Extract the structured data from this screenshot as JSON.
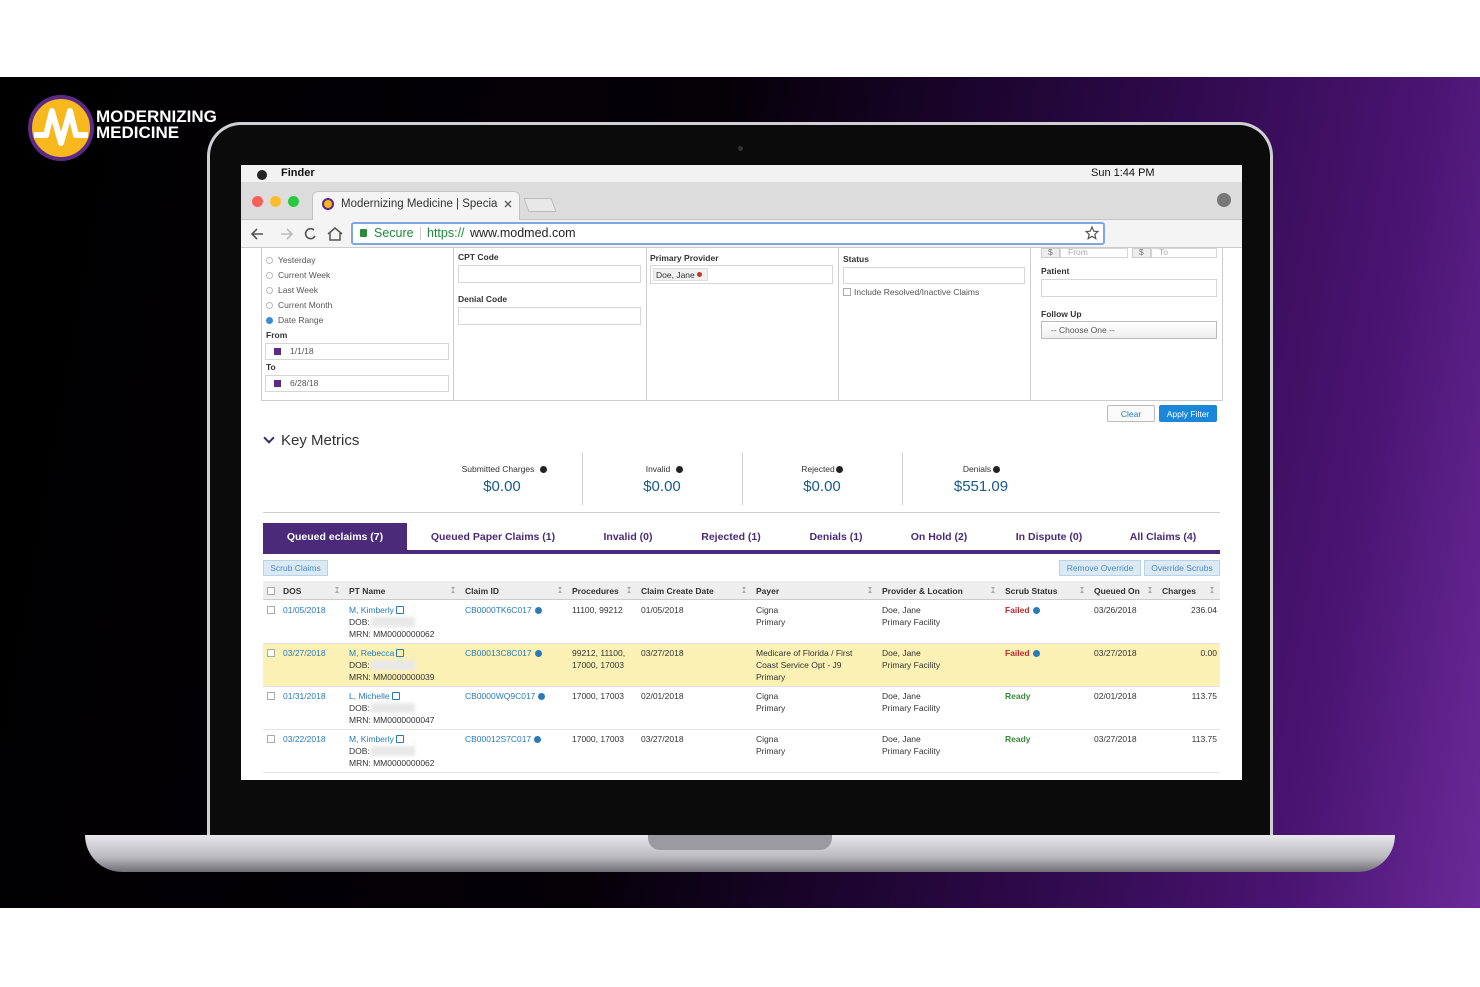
{
  "logo": {
    "line1": "MODERNIZING",
    "line2": "MEDICINE"
  },
  "menubar": {
    "app": "Finder",
    "clock": "Sun 1:44 PM"
  },
  "browser": {
    "tab_title": "Modernizing Medicine | Specia",
    "secure": "Secure",
    "url_scheme": "https://",
    "url_host": "www.modmed.com"
  },
  "filters": {
    "date_options": [
      "Yesterday",
      "Current Week",
      "Last Week",
      "Current Month",
      "Date Range"
    ],
    "from_label": "From",
    "from_value": "1/1/18",
    "to_label": "To",
    "to_value": "6/28/18",
    "cpt_code_label": "CPT Code",
    "denial_code_label": "Denial Code",
    "primary_provider_label": "Primary Provider",
    "provider_chip": "Doe, Jane",
    "status_label": "Status",
    "include_resolved": "Include Resolved/Inactive Claims",
    "currency": "$",
    "amount_from": "From",
    "amount_to": "To",
    "patient_label": "Patient",
    "follow_up_label": "Follow Up",
    "follow_up_value": "-- Choose One --",
    "clear": "Clear",
    "apply": "Apply Filter"
  },
  "key_metrics": {
    "title": "Key Metrics",
    "items": [
      {
        "label": "Submitted Charges",
        "value": "$0.00"
      },
      {
        "label": "Invalid",
        "value": "$0.00"
      },
      {
        "label": "Rejected",
        "value": "$0.00"
      },
      {
        "label": "Denials",
        "value": "$551.09"
      }
    ]
  },
  "tabs": [
    "Queued eclaims (7)",
    "Queued Paper Claims (1)",
    "Invalid (0)",
    "Rejected (1)",
    "Denials (1)",
    "On Hold (2)",
    "In Dispute (0)",
    "All Claims (4)"
  ],
  "buttons": {
    "scrub": "Scrub Claims",
    "remove_override": "Remove Override",
    "override_scrubs": "Override Scrubs"
  },
  "table": {
    "columns": [
      "DOS",
      "PT Name",
      "Claim ID",
      "Procedures",
      "Claim Create Date",
      "Payer",
      "Provider & Location",
      "Scrub Status",
      "Queued On",
      "Charges"
    ],
    "rows": [
      {
        "dos": "01/05/2018",
        "pt_name": "M, Kimberly",
        "dob": "DOB:",
        "mrn": "MRN: MM0000000062",
        "claim_id": "CB0000TK6C017",
        "procedures": "11100, 99212",
        "claim_create_date": "01/05/2018",
        "payer": "Cigna",
        "payer_rank": "Primary",
        "provider": "Doe, Jane",
        "location": "Primary Facility",
        "scrub_status": "Failed",
        "queued_on": "03/26/2018",
        "charges": "236.04"
      },
      {
        "dos": "03/27/2018",
        "pt_name": "M, Rebecca",
        "dob": "DOB:",
        "mrn": "MRN: MM0000000039",
        "claim_id": "CB00013C8C017",
        "procedures": "99212, 11100, 17000, 17003",
        "claim_create_date": "03/27/2018",
        "payer": "Medicare of Florida / First Coast Service Opt - J9",
        "payer_rank": "Primary",
        "provider": "Doe, Jane",
        "location": "Primary Facility",
        "scrub_status": "Failed",
        "queued_on": "03/27/2018",
        "charges": "0.00"
      },
      {
        "dos": "01/31/2018",
        "pt_name": "L, Michelle",
        "dob": "DOB:",
        "mrn": "MRN: MM0000000047",
        "claim_id": "CB0000WQ9C017",
        "procedures": "17000, 17003",
        "claim_create_date": "02/01/2018",
        "payer": "Cigna",
        "payer_rank": "Primary",
        "provider": "Doe, Jane",
        "location": "Primary Facility",
        "scrub_status": "Ready",
        "queued_on": "02/01/2018",
        "charges": "113.75"
      },
      {
        "dos": "03/22/2018",
        "pt_name": "M, Kimberly",
        "dob": "DOB:",
        "mrn": "MRN: MM0000000062",
        "claim_id": "CB00012S7C017",
        "procedures": "17000, 17003",
        "claim_create_date": "03/27/2018",
        "payer": "Cigna",
        "payer_rank": "Primary",
        "provider": "Doe, Jane",
        "location": "Primary Facility",
        "scrub_status": "Ready",
        "queued_on": "03/27/2018",
        "charges": "113.75"
      }
    ]
  }
}
